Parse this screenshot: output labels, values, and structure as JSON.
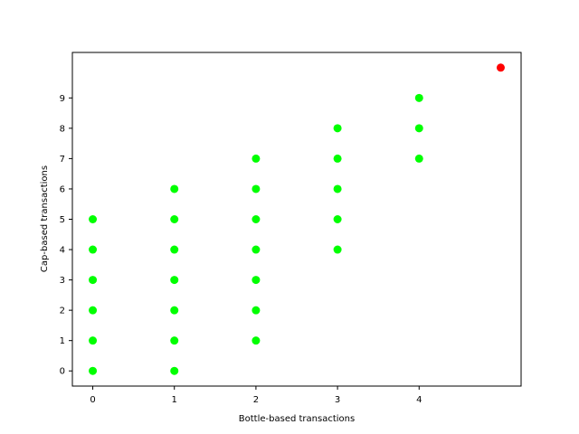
{
  "chart_data": {
    "type": "scatter",
    "title": "",
    "xlabel": "Bottle-based transactions",
    "ylabel": "Cap-based transactions",
    "xlim": [
      -0.25,
      5.25
    ],
    "ylim": [
      -0.5,
      10.5
    ],
    "xticks": [
      0,
      1,
      2,
      3,
      4
    ],
    "yticks": [
      0,
      1,
      2,
      3,
      4,
      5,
      6,
      7,
      8,
      9
    ],
    "grid": false,
    "series": [
      {
        "color": "#00ff00",
        "points": [
          [
            0,
            0
          ],
          [
            0,
            1
          ],
          [
            0,
            2
          ],
          [
            0,
            3
          ],
          [
            0,
            4
          ],
          [
            0,
            5
          ],
          [
            1,
            0
          ],
          [
            1,
            1
          ],
          [
            1,
            2
          ],
          [
            1,
            3
          ],
          [
            1,
            4
          ],
          [
            1,
            5
          ],
          [
            1,
            6
          ],
          [
            2,
            1
          ],
          [
            2,
            2
          ],
          [
            2,
            3
          ],
          [
            2,
            4
          ],
          [
            2,
            5
          ],
          [
            2,
            6
          ],
          [
            2,
            7
          ],
          [
            3,
            4
          ],
          [
            3,
            5
          ],
          [
            3,
            6
          ],
          [
            3,
            7
          ],
          [
            3,
            8
          ],
          [
            4,
            7
          ],
          [
            4,
            8
          ],
          [
            4,
            9
          ]
        ]
      },
      {
        "color": "#ff0000",
        "points": [
          [
            5,
            10
          ]
        ]
      }
    ]
  }
}
